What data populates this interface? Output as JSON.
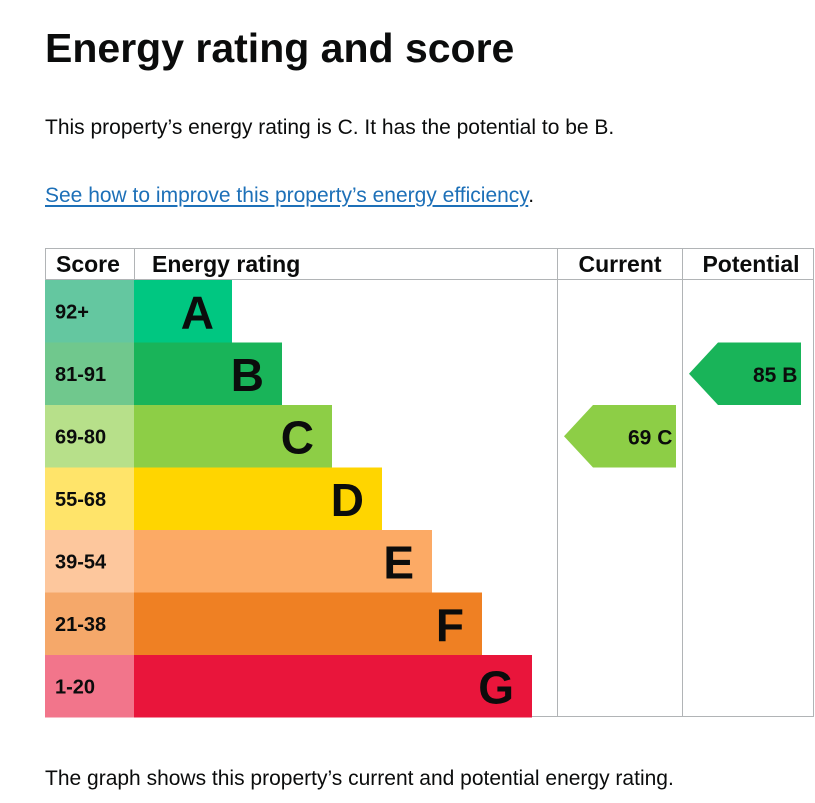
{
  "page": {
    "title": "Energy rating and score",
    "intro": "This property’s energy rating is C. It has the potential to be B.",
    "improve_link": "See how to improve this property’s energy efficiency",
    "improve_link_suffix": ".",
    "footer": "The graph shows this property’s current and potential energy rating."
  },
  "chart_data": {
    "type": "table",
    "columns": {
      "score": "Score",
      "rating": "Energy rating",
      "current": "Current",
      "potential": "Potential"
    },
    "bands": [
      {
        "letter": "A",
        "score": "92+",
        "bar_color": "#00c781",
        "score_color": "#64c7a0"
      },
      {
        "letter": "B",
        "score": "81-91",
        "bar_color": "#19b459",
        "score_color": "#70c88d"
      },
      {
        "letter": "C",
        "score": "69-80",
        "bar_color": "#8dce46",
        "score_color": "#b7e08a"
      },
      {
        "letter": "D",
        "score": "55-68",
        "bar_color": "#ffd500",
        "score_color": "#ffe46a"
      },
      {
        "letter": "E",
        "score": "39-54",
        "bar_color": "#fcaa65",
        "score_color": "#fdc79d"
      },
      {
        "letter": "F",
        "score": "21-38",
        "bar_color": "#ef8023",
        "score_color": "#f5a86a"
      },
      {
        "letter": "G",
        "score": "1-20",
        "bar_color": "#e9153b",
        "score_color": "#f2758b"
      }
    ],
    "current": {
      "score": 69,
      "band": "C",
      "label": "69  C",
      "color": "#8dce46"
    },
    "potential": {
      "score": 85,
      "band": "B",
      "label": "85  B",
      "color": "#19b459"
    }
  }
}
